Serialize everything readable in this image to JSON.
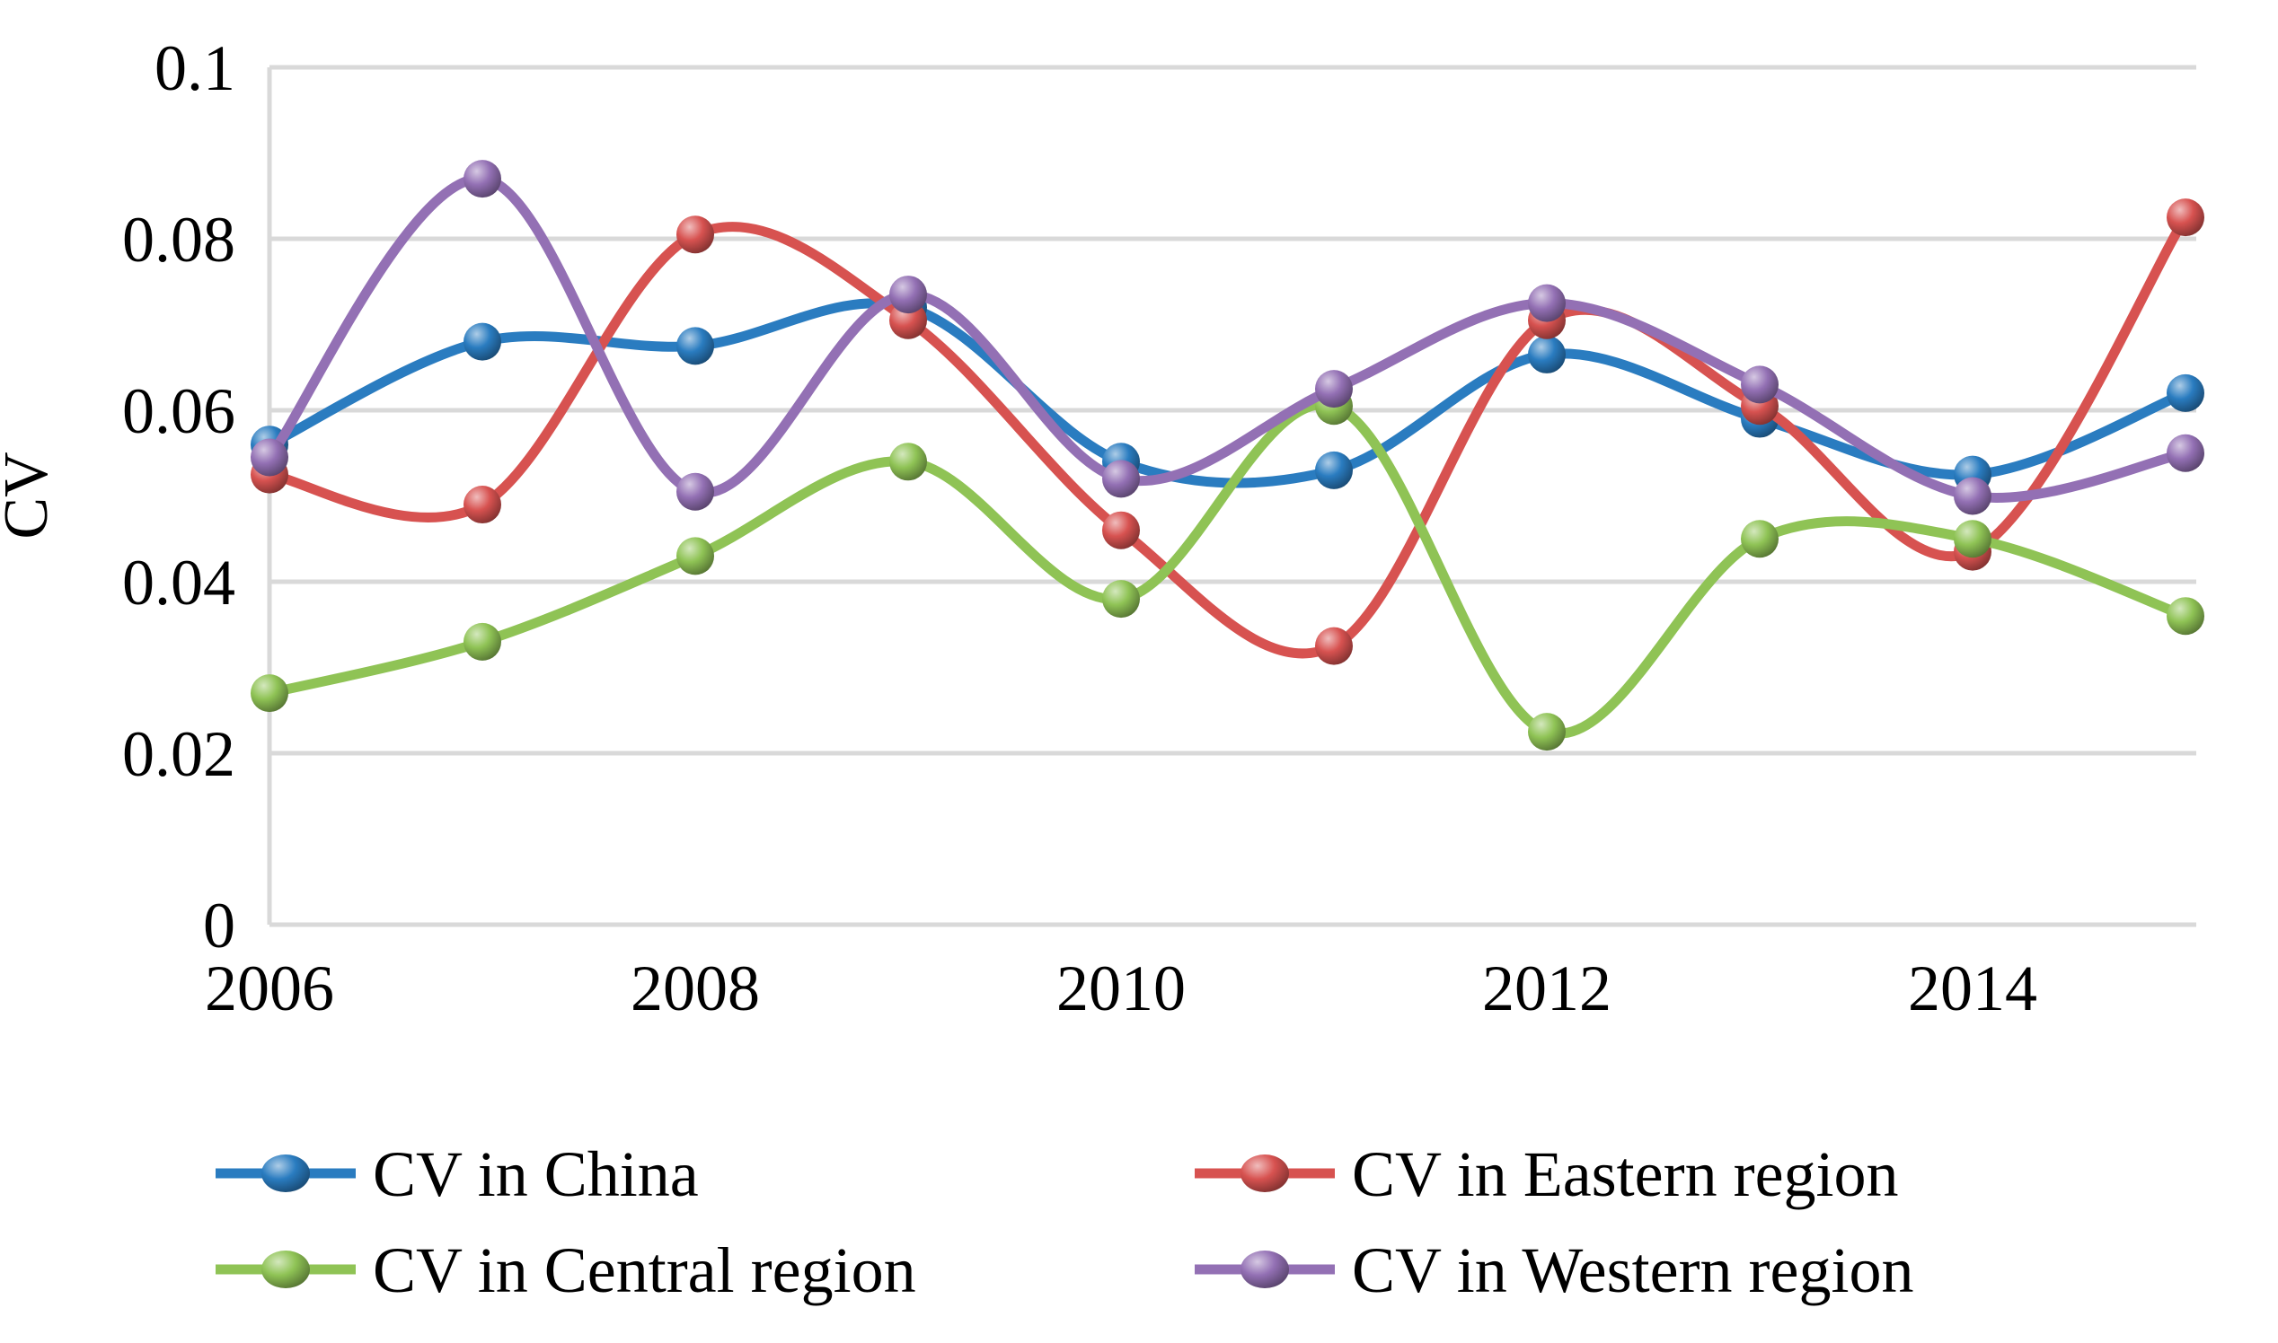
{
  "chart_data": {
    "type": "line",
    "smooth": true,
    "x": [
      2006,
      2007,
      2008,
      2009,
      2010,
      2011,
      2012,
      2013,
      2014,
      2015
    ],
    "series": [
      {
        "name": "CV in China",
        "color": "#2A7CC0",
        "values": [
          0.056,
          0.068,
          0.0675,
          0.072,
          0.054,
          0.053,
          0.0665,
          0.059,
          0.0525,
          0.062
        ]
      },
      {
        "name": "CV in Eastern region",
        "color": "#D75250",
        "values": [
          0.0525,
          0.049,
          0.0805,
          0.0705,
          0.046,
          0.0325,
          0.0705,
          0.0605,
          0.0435,
          0.0825
        ]
      },
      {
        "name": "CV in Central region",
        "color": "#8FC355",
        "values": [
          0.027,
          0.033,
          0.043,
          0.054,
          0.038,
          0.0605,
          0.0225,
          0.045,
          0.045,
          0.036
        ]
      },
      {
        "name": "CV in Western region",
        "color": "#9370B4",
        "values": [
          0.0545,
          0.087,
          0.0505,
          0.0735,
          0.052,
          0.0625,
          0.0725,
          0.063,
          0.05,
          0.055
        ]
      }
    ],
    "title": "",
    "xlabel": "",
    "ylabel": "CV",
    "ylim": [
      0,
      0.1
    ],
    "yticks": [
      0,
      0.02,
      0.04,
      0.06,
      0.08,
      0.1
    ],
    "ytick_labels": [
      "0",
      "0.02",
      "0.04",
      "0.06",
      "0.08",
      "0.1"
    ],
    "xticks": [
      2006,
      2008,
      2010,
      2012,
      2014
    ],
    "xtick_labels": [
      "2006",
      "2008",
      "2010",
      "2012",
      "2014"
    ],
    "grid": true,
    "gridline_color": "#D9D9D9",
    "legend_position": "bottom",
    "legend": [
      "CV in China",
      "CV in Eastern region",
      "CV in Central region",
      "CV in Western region"
    ]
  }
}
